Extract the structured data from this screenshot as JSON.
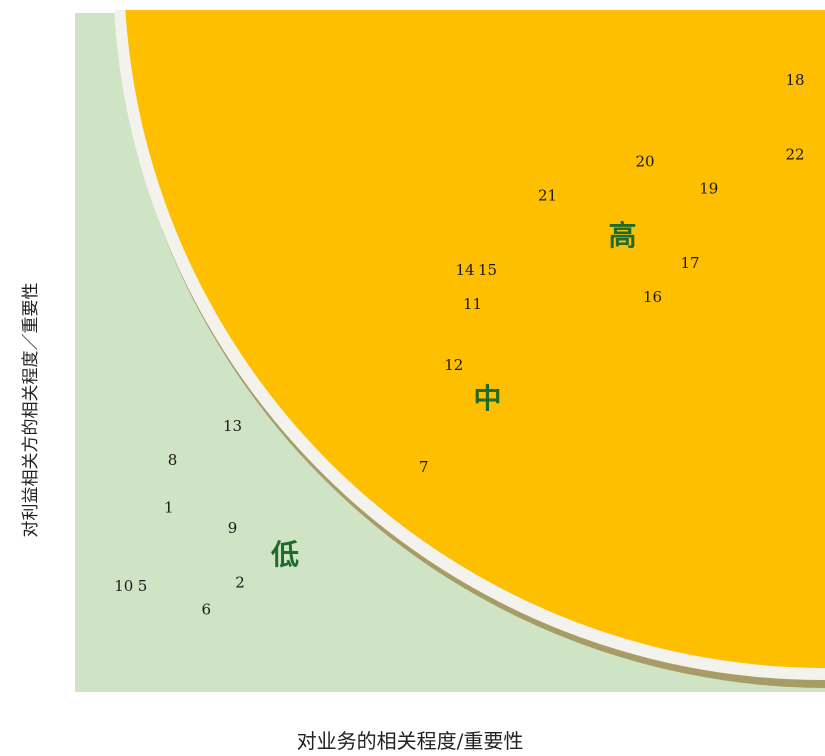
{
  "colors": {
    "outer_zone": "#cfe4c5",
    "inner_zone": "#fdbf00",
    "rim": "#f4f2ec",
    "shadow": "#a89c66",
    "zone_text": "#1e6b2a"
  },
  "chart_data": {
    "type": "scatter",
    "title": "",
    "xlabel": "对业务的相关程度/重要性",
    "ylabel": "对利益相关方的相关程度／重要性",
    "xlim": [
      0,
      100
    ],
    "ylim": [
      0,
      100
    ],
    "grid": false,
    "zones": [
      {
        "name": "低",
        "x": 28,
        "y": 20
      },
      {
        "name": "中",
        "x": 55,
        "y": 43
      },
      {
        "name": "高",
        "x": 73,
        "y": 67
      }
    ],
    "points": [
      {
        "label": "1",
        "x": 12.5,
        "y": 27
      },
      {
        "label": "2",
        "x": 22,
        "y": 16
      },
      {
        "label": "5",
        "x": 9,
        "y": 15.5
      },
      {
        "label": "6",
        "x": 17.5,
        "y": 12
      },
      {
        "label": "7",
        "x": 46.5,
        "y": 33
      },
      {
        "label": "8",
        "x": 13,
        "y": 34
      },
      {
        "label": "9",
        "x": 21,
        "y": 24
      },
      {
        "label": "10",
        "x": 6.5,
        "y": 15.5
      },
      {
        "label": "11",
        "x": 53,
        "y": 57
      },
      {
        "label": "12",
        "x": 50.5,
        "y": 48
      },
      {
        "label": "13",
        "x": 21,
        "y": 39
      },
      {
        "label": "14",
        "x": 52,
        "y": 62
      },
      {
        "label": "15",
        "x": 55,
        "y": 62
      },
      {
        "label": "16",
        "x": 77,
        "y": 58
      },
      {
        "label": "17",
        "x": 82,
        "y": 63
      },
      {
        "label": "18",
        "x": 96,
        "y": 90
      },
      {
        "label": "19",
        "x": 84.5,
        "y": 74
      },
      {
        "label": "20",
        "x": 76,
        "y": 78
      },
      {
        "label": "21",
        "x": 63,
        "y": 73
      },
      {
        "label": "22",
        "x": 96,
        "y": 79
      }
    ]
  }
}
